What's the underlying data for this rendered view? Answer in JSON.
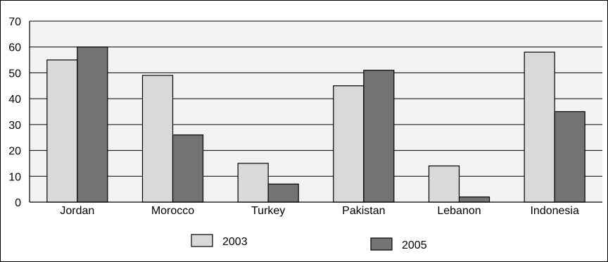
{
  "chart_data": {
    "type": "bar",
    "categories": [
      "Jordan",
      "Morocco",
      "Turkey",
      "Pakistan",
      "Lebanon",
      "Indonesia"
    ],
    "series": [
      {
        "name": "2003",
        "values": [
          55,
          49,
          15,
          45,
          14,
          58
        ],
        "color": "#d9d9d9"
      },
      {
        "name": "2005",
        "values": [
          60,
          26,
          7,
          51,
          2,
          35
        ],
        "color": "#737373"
      }
    ],
    "ylim": [
      0,
      70
    ],
    "yticks": [
      "0",
      "10",
      "20",
      "30",
      "40",
      "50",
      "60",
      "70"
    ],
    "grid": true,
    "legend_placement": "bottom-center",
    "plot_background": "#f2f2f2"
  }
}
